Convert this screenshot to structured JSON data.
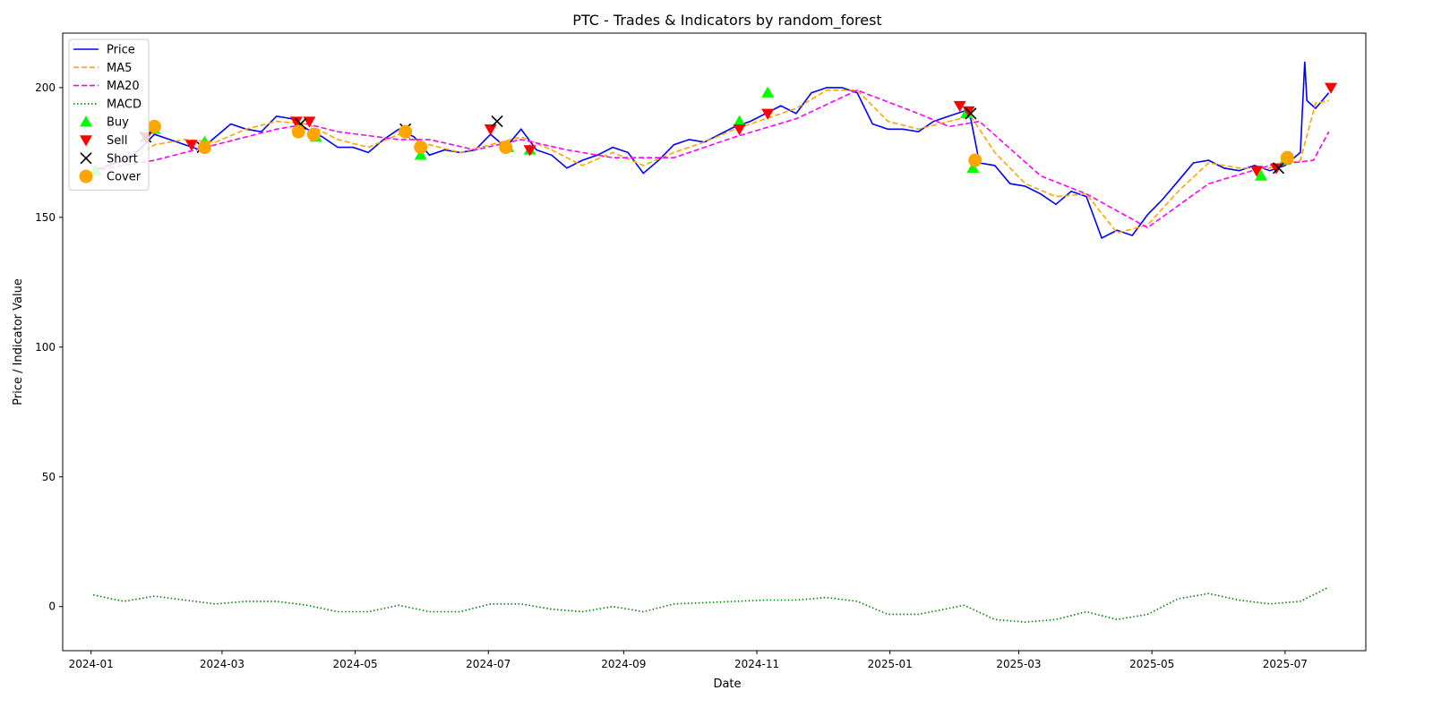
{
  "chart_data": {
    "type": "line",
    "title": "PTC - Trades & Indicators by random_forest",
    "xlabel": "Date",
    "ylabel": "Price / Indicator Value",
    "ylim": [
      -17,
      221
    ],
    "xlim": [
      "2023-12-19",
      "2025-08-07"
    ],
    "y_ticks": [
      0,
      50,
      100,
      150,
      200
    ],
    "x_ticks": [
      "2024-01",
      "2024-03",
      "2024-05",
      "2024-07",
      "2024-09",
      "2024-11",
      "2025-01",
      "2025-03",
      "2025-05",
      "2025-07"
    ],
    "grid": false,
    "legend_position": "top-left",
    "series": [
      {
        "name": "Price",
        "style": "solid",
        "color": "#0000ff",
        "points": [
          [
            "2024-01-02",
            168
          ],
          [
            "2024-01-09",
            170
          ],
          [
            "2024-01-16",
            172
          ],
          [
            "2024-01-23",
            176
          ],
          [
            "2024-01-30",
            182
          ],
          [
            "2024-02-06",
            180
          ],
          [
            "2024-02-13",
            178
          ],
          [
            "2024-02-20",
            176
          ],
          [
            "2024-02-27",
            181
          ],
          [
            "2024-03-05",
            186
          ],
          [
            "2024-03-12",
            184
          ],
          [
            "2024-03-19",
            183
          ],
          [
            "2024-03-26",
            189
          ],
          [
            "2024-04-02",
            188
          ],
          [
            "2024-04-09",
            184
          ],
          [
            "2024-04-16",
            181
          ],
          [
            "2024-04-23",
            177
          ],
          [
            "2024-04-30",
            177
          ],
          [
            "2024-05-07",
            175
          ],
          [
            "2024-05-14",
            180
          ],
          [
            "2024-05-21",
            184
          ],
          [
            "2024-05-28",
            181
          ],
          [
            "2024-06-04",
            174
          ],
          [
            "2024-06-11",
            176
          ],
          [
            "2024-06-18",
            175
          ],
          [
            "2024-06-25",
            176
          ],
          [
            "2024-07-02",
            182
          ],
          [
            "2024-07-09",
            177
          ],
          [
            "2024-07-16",
            184
          ],
          [
            "2024-07-23",
            176
          ],
          [
            "2024-07-30",
            174
          ],
          [
            "2024-08-06",
            169
          ],
          [
            "2024-08-13",
            172
          ],
          [
            "2024-08-20",
            174
          ],
          [
            "2024-08-27",
            177
          ],
          [
            "2024-09-03",
            175
          ],
          [
            "2024-09-10",
            167
          ],
          [
            "2024-09-17",
            172
          ],
          [
            "2024-09-24",
            178
          ],
          [
            "2024-10-01",
            180
          ],
          [
            "2024-10-08",
            179
          ],
          [
            "2024-10-15",
            182
          ],
          [
            "2024-10-22",
            185
          ],
          [
            "2024-10-29",
            187
          ],
          [
            "2024-11-05",
            190
          ],
          [
            "2024-11-12",
            193
          ],
          [
            "2024-11-19",
            190
          ],
          [
            "2024-11-26",
            198
          ],
          [
            "2024-12-03",
            200
          ],
          [
            "2024-12-10",
            200
          ],
          [
            "2024-12-17",
            198
          ],
          [
            "2024-12-24",
            186
          ],
          [
            "2024-12-31",
            184
          ],
          [
            "2025-01-07",
            184
          ],
          [
            "2025-01-14",
            183
          ],
          [
            "2025-01-21",
            187
          ],
          [
            "2025-01-28",
            189
          ],
          [
            "2025-02-04",
            191
          ],
          [
            "2025-02-07",
            188
          ],
          [
            "2025-02-11",
            171
          ],
          [
            "2025-02-18",
            170
          ],
          [
            "2025-02-25",
            163
          ],
          [
            "2025-03-04",
            162
          ],
          [
            "2025-03-11",
            159
          ],
          [
            "2025-03-18",
            155
          ],
          [
            "2025-03-25",
            160
          ],
          [
            "2025-04-01",
            158
          ],
          [
            "2025-04-08",
            142
          ],
          [
            "2025-04-15",
            145
          ],
          [
            "2025-04-22",
            143
          ],
          [
            "2025-04-29",
            151
          ],
          [
            "2025-05-06",
            157
          ],
          [
            "2025-05-13",
            164
          ],
          [
            "2025-05-20",
            171
          ],
          [
            "2025-05-27",
            172
          ],
          [
            "2025-06-03",
            169
          ],
          [
            "2025-06-10",
            168
          ],
          [
            "2025-06-17",
            170
          ],
          [
            "2025-06-24",
            168
          ],
          [
            "2025-07-01",
            170
          ],
          [
            "2025-07-08",
            175
          ],
          [
            "2025-07-10",
            210
          ],
          [
            "2025-07-11",
            195
          ],
          [
            "2025-07-15",
            192
          ],
          [
            "2025-07-21",
            198
          ]
        ]
      },
      {
        "name": "MA5",
        "style": "dashed",
        "color": "#ffa500",
        "points": [
          [
            "2024-01-02",
            169
          ],
          [
            "2024-01-16",
            170
          ],
          [
            "2024-01-30",
            178
          ],
          [
            "2024-02-13",
            180
          ],
          [
            "2024-02-27",
            179
          ],
          [
            "2024-03-12",
            184
          ],
          [
            "2024-03-26",
            187
          ],
          [
            "2024-04-09",
            186
          ],
          [
            "2024-04-23",
            180
          ],
          [
            "2024-05-07",
            177
          ],
          [
            "2024-05-21",
            182
          ],
          [
            "2024-06-04",
            178
          ],
          [
            "2024-06-18",
            175
          ],
          [
            "2024-07-02",
            178
          ],
          [
            "2024-07-16",
            181
          ],
          [
            "2024-07-30",
            176
          ],
          [
            "2024-08-13",
            170
          ],
          [
            "2024-08-27",
            175
          ],
          [
            "2024-09-10",
            170
          ],
          [
            "2024-09-24",
            175
          ],
          [
            "2024-10-08",
            179
          ],
          [
            "2024-10-22",
            184
          ],
          [
            "2024-11-05",
            188
          ],
          [
            "2024-11-19",
            192
          ],
          [
            "2024-12-03",
            199
          ],
          [
            "2024-12-17",
            199
          ],
          [
            "2024-12-31",
            187
          ],
          [
            "2025-01-14",
            184
          ],
          [
            "2025-01-28",
            187
          ],
          [
            "2025-02-07",
            189
          ],
          [
            "2025-02-18",
            175
          ],
          [
            "2025-03-04",
            163
          ],
          [
            "2025-03-18",
            158
          ],
          [
            "2025-04-01",
            159
          ],
          [
            "2025-04-15",
            144
          ],
          [
            "2025-04-29",
            147
          ],
          [
            "2025-05-13",
            160
          ],
          [
            "2025-05-27",
            171
          ],
          [
            "2025-06-10",
            169
          ],
          [
            "2025-06-24",
            169
          ],
          [
            "2025-07-08",
            172
          ],
          [
            "2025-07-15",
            194
          ],
          [
            "2025-07-21",
            195
          ]
        ]
      },
      {
        "name": "MA20",
        "style": "dashed",
        "color": "#ff00ff",
        "points": [
          [
            "2024-01-02",
            168
          ],
          [
            "2024-01-30",
            172
          ],
          [
            "2024-02-27",
            178
          ],
          [
            "2024-03-26",
            184
          ],
          [
            "2024-04-09",
            186
          ],
          [
            "2024-04-23",
            183
          ],
          [
            "2024-05-21",
            180
          ],
          [
            "2024-06-04",
            180
          ],
          [
            "2024-06-25",
            176
          ],
          [
            "2024-07-16",
            180
          ],
          [
            "2024-08-06",
            176
          ],
          [
            "2024-08-27",
            173
          ],
          [
            "2024-09-24",
            173
          ],
          [
            "2024-10-22",
            181
          ],
          [
            "2024-11-19",
            188
          ],
          [
            "2024-12-17",
            199
          ],
          [
            "2025-01-14",
            190
          ],
          [
            "2025-01-28",
            185
          ],
          [
            "2025-02-11",
            187
          ],
          [
            "2025-03-11",
            166
          ],
          [
            "2025-04-01",
            159
          ],
          [
            "2025-04-29",
            146
          ],
          [
            "2025-05-27",
            163
          ],
          [
            "2025-06-24",
            170
          ],
          [
            "2025-07-14",
            172
          ],
          [
            "2025-07-21",
            183
          ]
        ]
      },
      {
        "name": "MACD",
        "style": "dotted",
        "color": "#008000",
        "points": [
          [
            "2024-01-02",
            4.5
          ],
          [
            "2024-01-16",
            2
          ],
          [
            "2024-01-30",
            4
          ],
          [
            "2024-02-13",
            2.5
          ],
          [
            "2024-02-27",
            1
          ],
          [
            "2024-03-12",
            2
          ],
          [
            "2024-03-26",
            2
          ],
          [
            "2024-04-09",
            0.5
          ],
          [
            "2024-04-23",
            -2
          ],
          [
            "2024-05-07",
            -2
          ],
          [
            "2024-05-21",
            0.5
          ],
          [
            "2024-06-04",
            -2
          ],
          [
            "2024-06-18",
            -2
          ],
          [
            "2024-07-02",
            1
          ],
          [
            "2024-07-16",
            1
          ],
          [
            "2024-07-30",
            -1
          ],
          [
            "2024-08-13",
            -2
          ],
          [
            "2024-08-27",
            0
          ],
          [
            "2024-09-10",
            -2
          ],
          [
            "2024-09-24",
            1
          ],
          [
            "2024-10-08",
            1.5
          ],
          [
            "2024-10-22",
            2
          ],
          [
            "2024-11-05",
            2.5
          ],
          [
            "2024-11-19",
            2.5
          ],
          [
            "2024-12-03",
            3.5
          ],
          [
            "2024-12-17",
            2
          ],
          [
            "2024-12-31",
            -3
          ],
          [
            "2025-01-14",
            -3
          ],
          [
            "2025-02-04",
            0.5
          ],
          [
            "2025-02-18",
            -5
          ],
          [
            "2025-03-04",
            -6
          ],
          [
            "2025-03-18",
            -5
          ],
          [
            "2025-04-01",
            -2
          ],
          [
            "2025-04-15",
            -5
          ],
          [
            "2025-04-29",
            -3
          ],
          [
            "2025-05-13",
            3
          ],
          [
            "2025-05-27",
            5
          ],
          [
            "2025-06-10",
            2.5
          ],
          [
            "2025-06-24",
            1
          ],
          [
            "2025-07-08",
            2
          ],
          [
            "2025-07-21",
            7.5
          ]
        ]
      }
    ],
    "markers": [
      {
        "name": "Buy",
        "shape": "triangle-up",
        "color": "#00ff00",
        "points": [
          [
            "2024-01-03",
            168
          ],
          [
            "2024-01-30",
            184
          ],
          [
            "2024-02-22",
            179
          ],
          [
            "2024-04-13",
            181
          ],
          [
            "2024-05-31",
            174
          ],
          [
            "2024-07-10",
            177
          ],
          [
            "2024-07-20",
            176
          ],
          [
            "2024-10-24",
            187
          ],
          [
            "2024-11-06",
            198
          ],
          [
            "2025-02-05",
            190
          ],
          [
            "2025-02-08",
            169
          ],
          [
            "2025-06-20",
            166
          ],
          [
            "2025-07-01",
            172
          ]
        ]
      },
      {
        "name": "Sell",
        "shape": "triangle-down",
        "color": "#ff0000",
        "points": [
          [
            "2024-01-26",
            181
          ],
          [
            "2024-02-16",
            178
          ],
          [
            "2024-04-04",
            187
          ],
          [
            "2024-04-10",
            187
          ],
          [
            "2024-07-02",
            184
          ],
          [
            "2024-07-20",
            176
          ],
          [
            "2024-10-24",
            184
          ],
          [
            "2024-11-06",
            190
          ],
          [
            "2025-02-02",
            193
          ],
          [
            "2025-02-06",
            191
          ],
          [
            "2025-06-18",
            168
          ],
          [
            "2025-06-27",
            169
          ],
          [
            "2025-07-22",
            200
          ]
        ]
      },
      {
        "name": "Short",
        "shape": "x",
        "color": "#000000",
        "points": [
          [
            "2024-01-26",
            181
          ],
          [
            "2024-02-21",
            177
          ],
          [
            "2024-04-06",
            186
          ],
          [
            "2024-05-24",
            184
          ],
          [
            "2024-07-05",
            187
          ],
          [
            "2025-02-07",
            190
          ],
          [
            "2025-06-28",
            169
          ]
        ]
      },
      {
        "name": "Cover",
        "shape": "circle",
        "color": "#ffa500",
        "points": [
          [
            "2024-01-30",
            185
          ],
          [
            "2024-02-22",
            177
          ],
          [
            "2024-04-05",
            183
          ],
          [
            "2024-04-12",
            182
          ],
          [
            "2024-05-24",
            183
          ],
          [
            "2024-05-31",
            177
          ],
          [
            "2024-07-09",
            177
          ],
          [
            "2025-02-09",
            172
          ],
          [
            "2025-07-02",
            173
          ]
        ]
      }
    ]
  }
}
